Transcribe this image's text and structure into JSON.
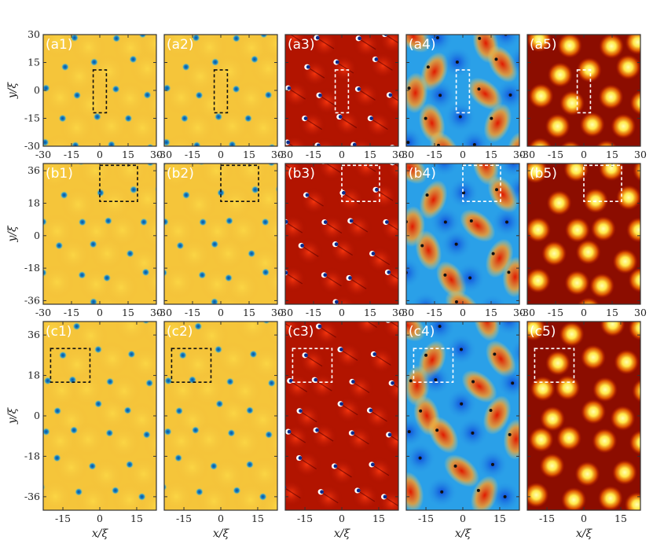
{
  "figure": {
    "y_axis_label": "y/ξ",
    "x_axis_label": "x/ξ",
    "rows": [
      {
        "id": "a",
        "panels": [
          "(a1)",
          "(a2)",
          "(a3)",
          "(a4)",
          "(a5)"
        ],
        "x_ticks": [
          "-30",
          "-15",
          "0",
          "15",
          "30"
        ],
        "y_ticks": [
          "30",
          "15",
          "0",
          "-15",
          "-30"
        ],
        "x_range": [
          -30,
          30
        ],
        "y_range": [
          -30,
          30
        ],
        "box": {
          "x": [
            -3.5,
            3.5
          ],
          "y": [
            -12,
            11
          ]
        }
      },
      {
        "id": "b",
        "panels": [
          "(b1)",
          "(b2)",
          "(b3)",
          "(b4)",
          "(b5)"
        ],
        "x_ticks": [
          "-30",
          "-15",
          "0",
          "15",
          "30"
        ],
        "y_ticks": [
          "36",
          "18",
          "0",
          "-18",
          "-36"
        ],
        "x_range": [
          -30,
          30
        ],
        "y_range": [
          -38,
          40
        ],
        "box": {
          "x": [
            0,
            20
          ],
          "y": [
            19,
            39
          ]
        }
      },
      {
        "id": "c",
        "panels": [
          "(c1)",
          "(c2)",
          "(c3)",
          "(c4)",
          "(c5)"
        ],
        "x_ticks": [
          "-15",
          "0",
          "15"
        ],
        "y_ticks": [
          "36",
          "18",
          "0",
          "-18",
          "-36"
        ],
        "x_range": [
          -23,
          23
        ],
        "y_range": [
          -42,
          42
        ],
        "box": {
          "x": [
            -20,
            -4
          ],
          "y": [
            15,
            30
          ]
        }
      }
    ],
    "panel_styles": [
      "density",
      "density",
      "phase",
      "relative-phase",
      "peaks"
    ],
    "colors": {
      "density_bg": "#f5c53a",
      "vortex": "#1e90c8",
      "phase_bg": "#b21400",
      "relphase_bg": "#2aa0e8",
      "peaks_bg": "#8c0d00",
      "peak": "#ffe84a",
      "frame": "#333333"
    }
  }
}
